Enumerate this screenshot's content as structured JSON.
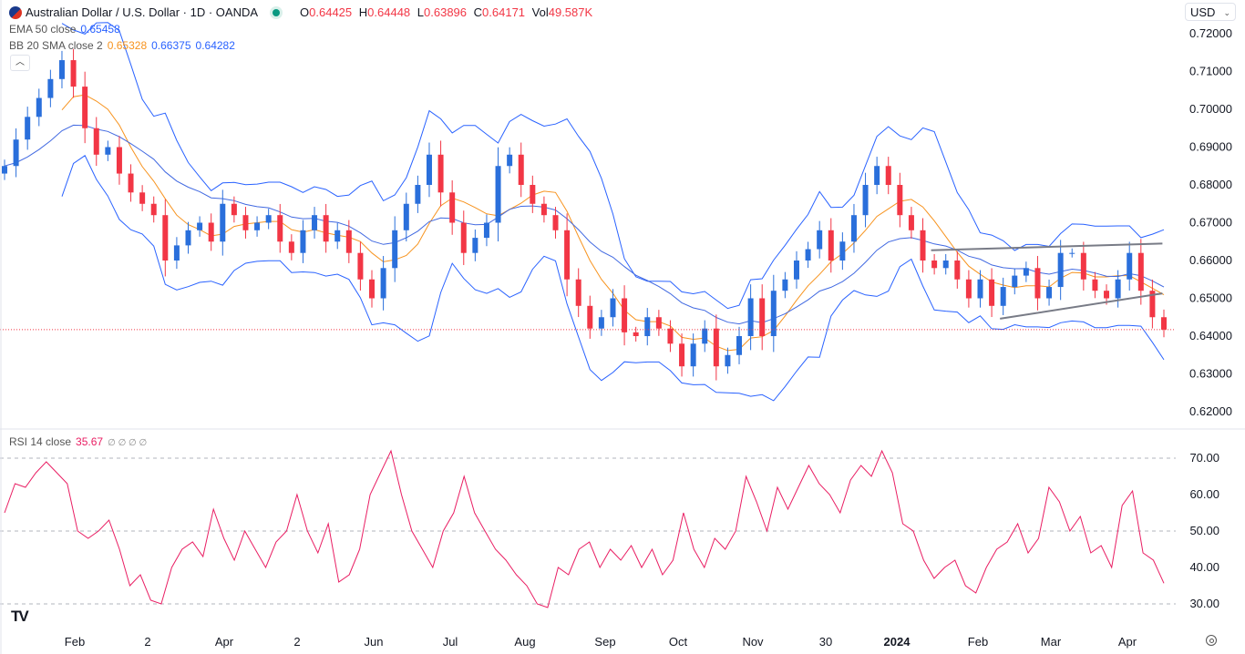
{
  "header": {
    "symbol_title": "Australian Dollar / U.S. Dollar · 1D · OANDA",
    "open_label": "O",
    "open": "0.64425",
    "high_label": "H",
    "high": "0.64448",
    "low_label": "L",
    "low": "0.63896",
    "close_label": "C",
    "close": "0.64171",
    "vol_label": "Vol",
    "vol": "49.587K",
    "currency": "USD"
  },
  "indicators": {
    "ema": {
      "label": "EMA 50 close",
      "value": "0.65458",
      "color": "#2962ff"
    },
    "bb": {
      "label": "BB 20 SMA close 2",
      "basis": "0.65328",
      "upper": "0.66375",
      "lower": "0.64282",
      "basis_color": "#f7931e",
      "band_color": "#2962ff"
    },
    "rsi": {
      "label": "RSI 14 close",
      "value": "35.67",
      "extra": "∅ ∅ ∅ ∅",
      "color": "#e91e63"
    }
  },
  "chart_data": [
    {
      "type": "candlestick",
      "title": "Australian Dollar / U.S. Dollar · 1D · OANDA",
      "ylim": [
        0.615,
        0.725
      ],
      "y_ticks": [
        "0.72000",
        "0.71000",
        "0.70000",
        "0.69000",
        "0.68000",
        "0.67000",
        "0.66000",
        "0.65000",
        "0.64000",
        "0.63000",
        "0.62000"
      ],
      "x_ticks": [
        "Feb",
        "2",
        "Apr",
        "2",
        "Jun",
        "Jul",
        "Aug",
        "Sep",
        "Oct",
        "Nov",
        "30",
        "2024",
        "Feb",
        "Mar",
        "Apr"
      ],
      "colors": {
        "up": "#2a6fdb",
        "down": "#f23645"
      },
      "last_price": 0.64171,
      "close": [
        0.685,
        0.692,
        0.698,
        0.703,
        0.708,
        0.713,
        0.706,
        0.695,
        0.688,
        0.69,
        0.683,
        0.678,
        0.675,
        0.672,
        0.66,
        0.664,
        0.668,
        0.67,
        0.665,
        0.675,
        0.672,
        0.668,
        0.67,
        0.672,
        0.665,
        0.662,
        0.668,
        0.672,
        0.665,
        0.668,
        0.662,
        0.655,
        0.65,
        0.658,
        0.668,
        0.675,
        0.68,
        0.688,
        0.678,
        0.67,
        0.662,
        0.666,
        0.67,
        0.685,
        0.688,
        0.68,
        0.675,
        0.672,
        0.668,
        0.655,
        0.648,
        0.642,
        0.645,
        0.65,
        0.641,
        0.64,
        0.645,
        0.642,
        0.638,
        0.632,
        0.638,
        0.642,
        0.632,
        0.635,
        0.64,
        0.65,
        0.64,
        0.652,
        0.655,
        0.66,
        0.663,
        0.668,
        0.66,
        0.665,
        0.672,
        0.68,
        0.685,
        0.68,
        0.672,
        0.668,
        0.66,
        0.658,
        0.66,
        0.655,
        0.65,
        0.655,
        0.648,
        0.653,
        0.656,
        0.658,
        0.65,
        0.653,
        0.662,
        0.662,
        0.655,
        0.652,
        0.65,
        0.655,
        0.662,
        0.652,
        0.645,
        0.64171
      ],
      "trendlines": [
        {
          "from": [
            "2024-01-15",
            0.6627
          ],
          "to": [
            "2024-04-18",
            0.6645
          ],
          "color": "#787b86"
        },
        {
          "from": [
            "2024-02-12",
            0.6446
          ],
          "to": [
            "2024-04-18",
            0.6513
          ],
          "color": "#787b86"
        }
      ]
    },
    {
      "type": "line",
      "title": "RSI 14 close",
      "ylim": [
        25,
        77
      ],
      "y_ticks": [
        "70.00",
        "60.00",
        "50.00",
        "40.00",
        "30.00"
      ],
      "levels": [
        70,
        50,
        30
      ],
      "values": [
        55,
        63,
        62,
        66,
        69,
        66,
        63,
        50,
        48,
        50,
        53,
        45,
        35,
        38,
        31,
        30,
        40,
        45,
        47,
        43,
        56,
        48,
        42,
        50,
        45,
        40,
        47,
        50,
        60,
        50,
        44,
        52,
        36,
        38,
        45,
        60,
        66,
        72,
        60,
        50,
        45,
        40,
        50,
        55,
        65,
        55,
        50,
        45,
        42,
        38,
        35,
        30,
        29,
        40,
        38,
        45,
        47,
        40,
        45,
        42,
        46,
        40,
        45,
        38,
        42,
        55,
        45,
        40,
        48,
        45,
        50,
        65,
        58,
        50,
        62,
        56,
        62,
        68,
        63,
        60,
        55,
        64,
        68,
        65,
        72,
        66,
        52,
        50,
        42,
        37,
        40,
        42,
        35,
        33,
        40,
        45,
        47,
        52,
        44,
        48,
        62,
        58,
        50,
        54,
        44,
        46,
        40,
        57,
        61,
        44,
        42,
        35.67
      ]
    }
  ],
  "branding": {
    "logo": "TV"
  }
}
